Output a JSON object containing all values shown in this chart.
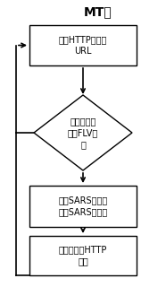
{
  "title": "MT端",
  "box1_text": "抓取HTTP请求的\nURL",
  "diamond_text": "是否后续视\n文有FLV标\n识",
  "box2_text": "通过SARS请求发\n送给SARS服务器",
  "box3_text": "检测下一个HTTP\n报文",
  "bg_color": "#ffffff",
  "box_facecolor": "#ffffff",
  "box_edgecolor": "#000000",
  "text_color": "#000000",
  "arrow_color": "#000000",
  "title_fontsize": 10,
  "label_fontsize": 7.0,
  "fig_width": 1.86,
  "fig_height": 3.2,
  "dpi": 100
}
